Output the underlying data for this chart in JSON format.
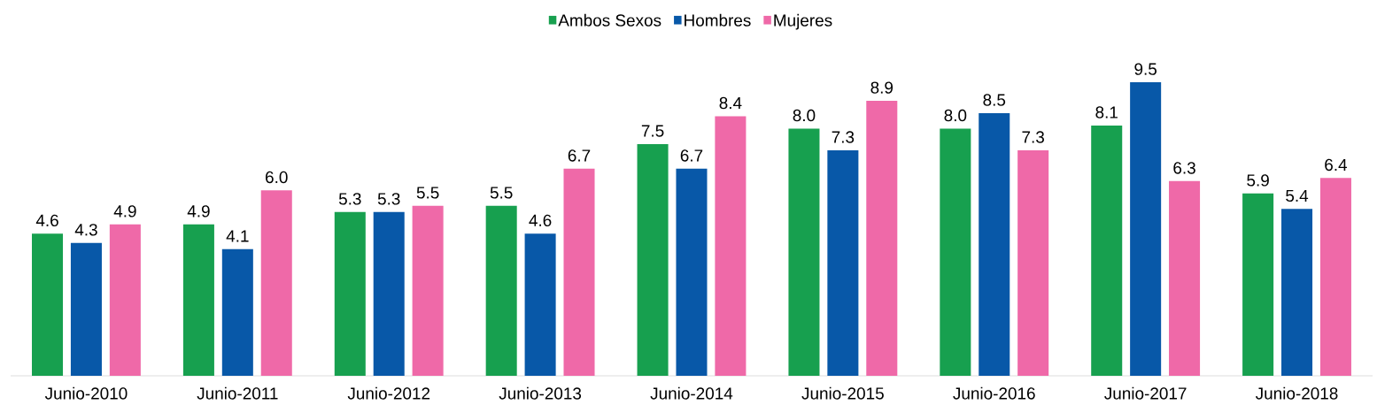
{
  "chart_data": {
    "type": "bar",
    "categories": [
      "Junio-2010",
      "Junio-2011",
      "Junio-2012",
      "Junio-2013",
      "Junio-2014",
      "Junio-2015",
      "Junio-2016",
      "Junio-2017",
      "Junio-2018"
    ],
    "series": [
      {
        "name": "Ambos Sexos",
        "color": "#17a04f",
        "values": [
          4.6,
          4.9,
          5.3,
          5.5,
          7.5,
          8.0,
          8.0,
          8.1,
          5.9
        ],
        "value_labels": [
          "4.6",
          "4.9",
          "5.3",
          "5.5",
          "7.5",
          "8.0",
          "8.0",
          "8.1",
          "5.9"
        ]
      },
      {
        "name": "Hombres",
        "color": "#0858a8",
        "values": [
          4.3,
          4.1,
          5.3,
          4.6,
          6.7,
          7.3,
          8.5,
          9.5,
          5.4
        ],
        "value_labels": [
          "4.3",
          "4.1",
          "5.3",
          "4.6",
          "6.7",
          "7.3",
          "8.5",
          "9.5",
          "5.4"
        ]
      },
      {
        "name": "Mujeres",
        "color": "#ef69a8",
        "values": [
          4.9,
          6.0,
          5.5,
          6.7,
          8.4,
          8.9,
          7.3,
          6.3,
          6.4
        ],
        "value_labels": [
          "4.9",
          "6.0",
          "5.5",
          "6.7",
          "8.4",
          "8.9",
          "7.3",
          "6.3",
          "6.4"
        ]
      }
    ],
    "legend": "top",
    "tick_labels": "x"
  }
}
